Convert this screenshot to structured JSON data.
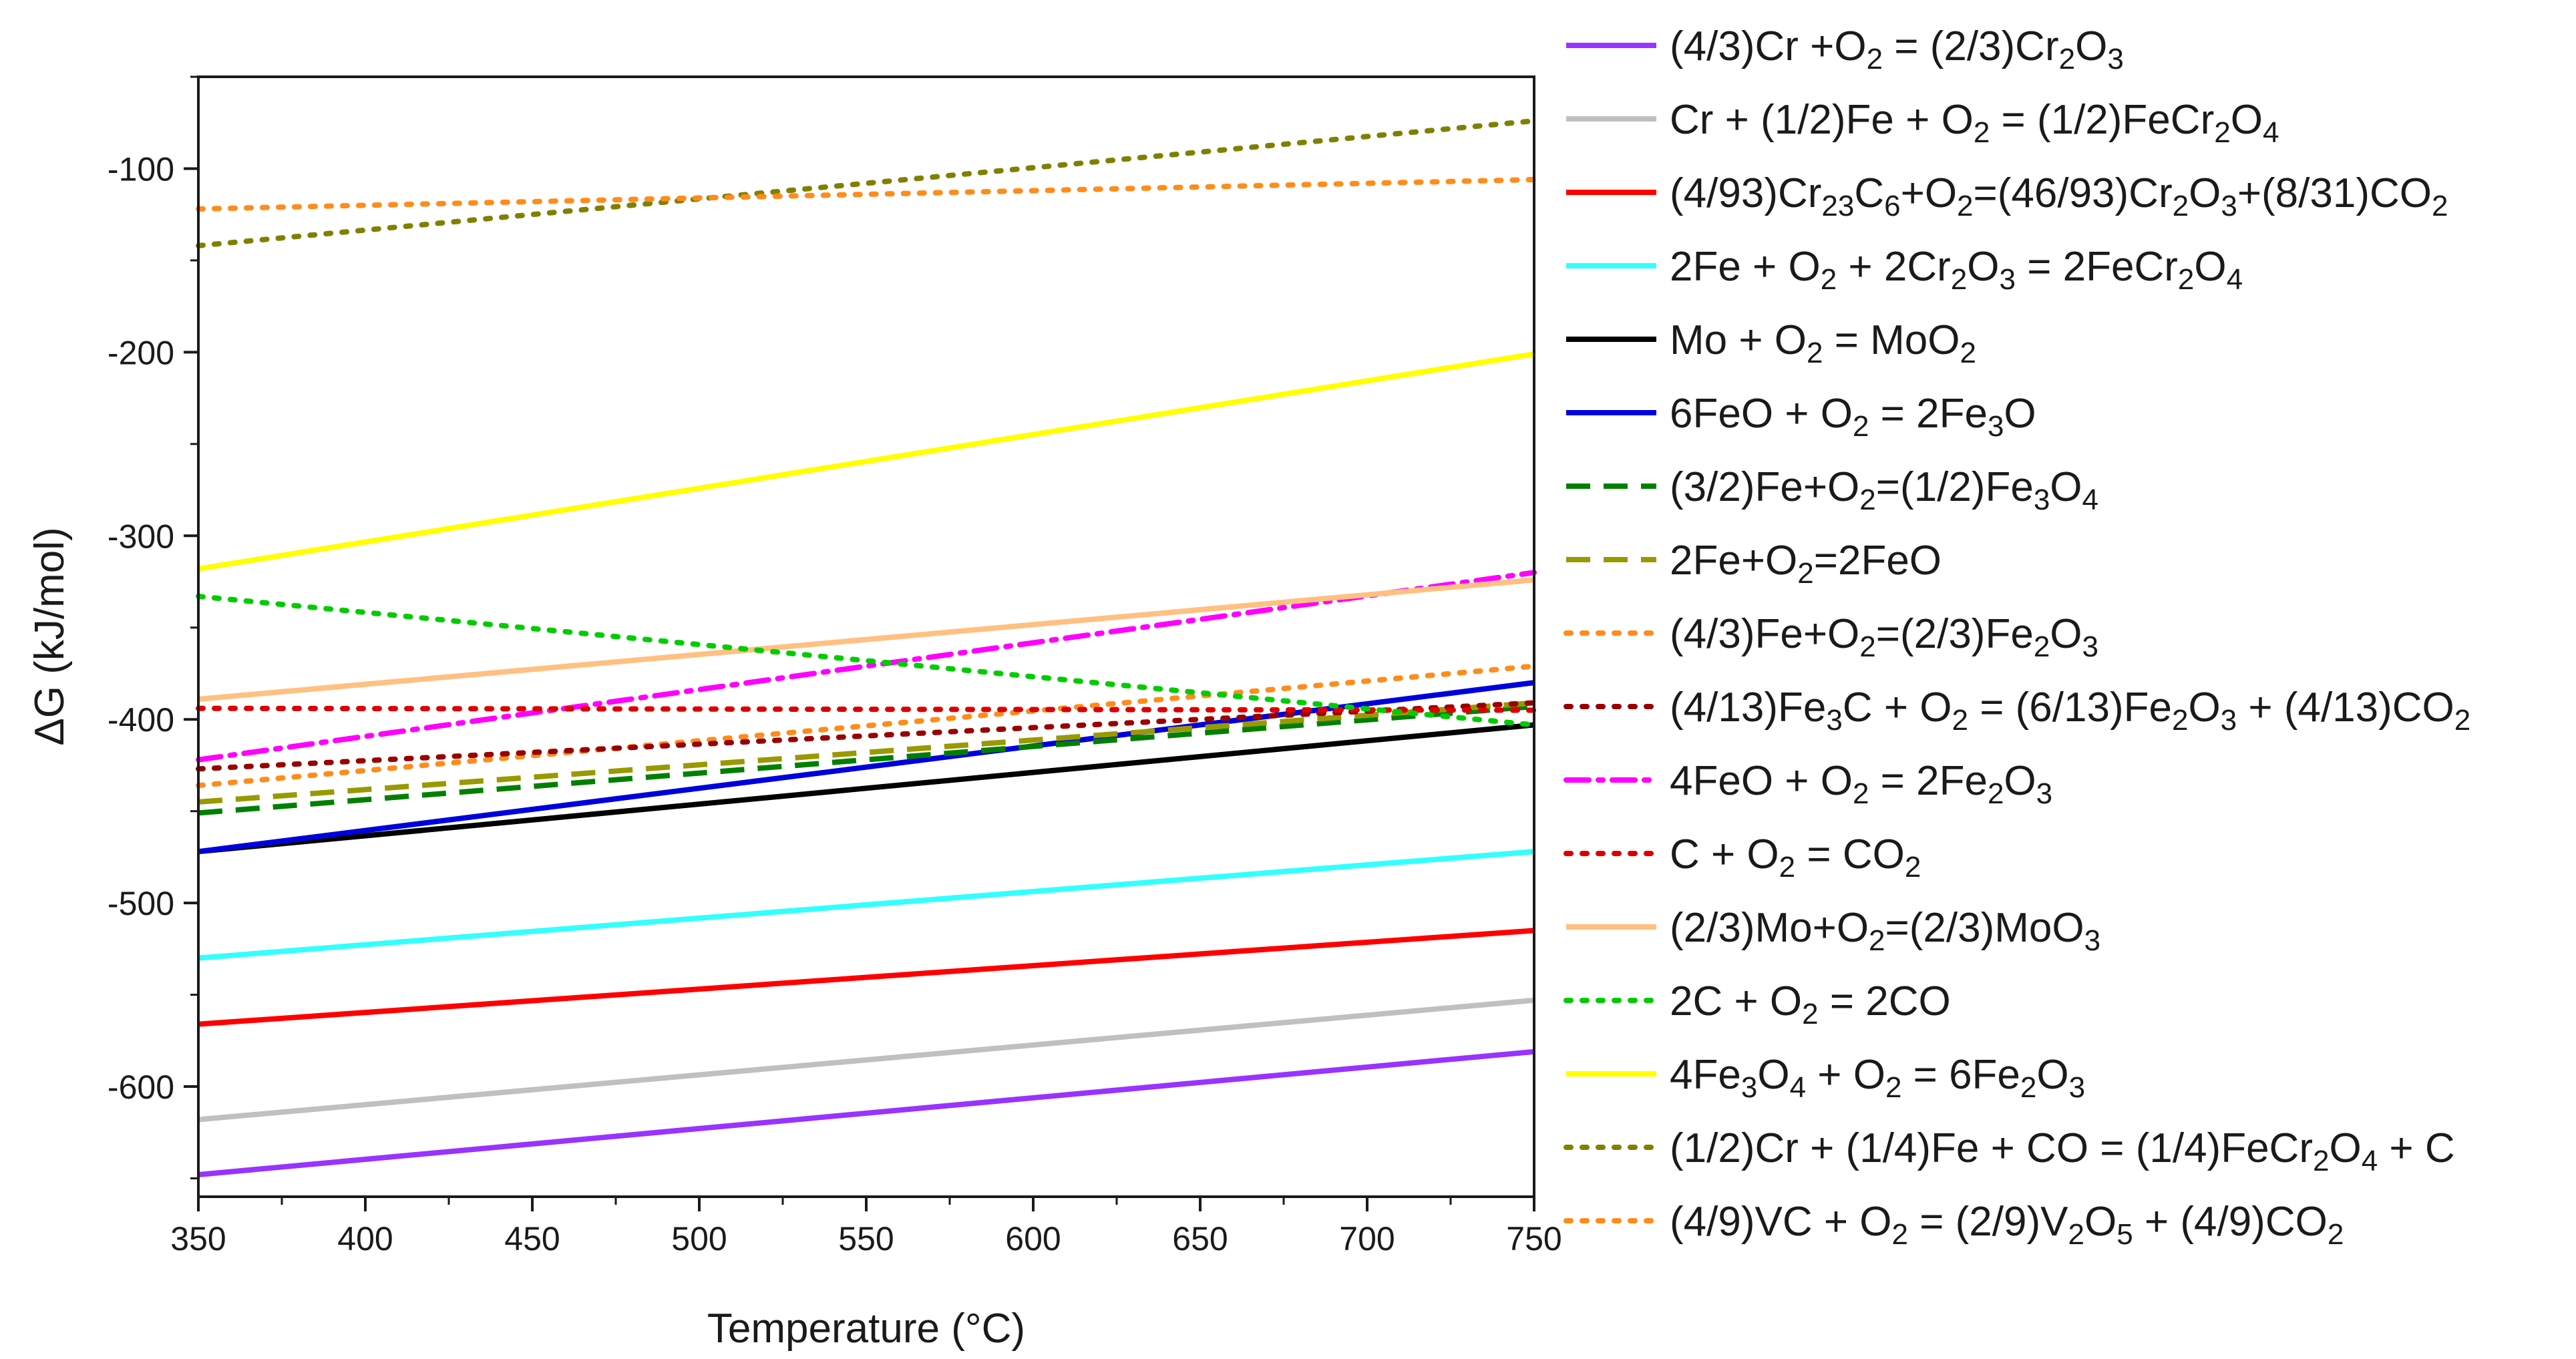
{
  "chart_data": {
    "type": "line",
    "title": "",
    "xlabel": "Temperature (°C)",
    "ylabel": "ΔG (kJ/mol)",
    "xlim": [
      350,
      750
    ],
    "ylim": [
      -660,
      -50
    ],
    "x_ticks": [
      350,
      400,
      450,
      500,
      550,
      600,
      650,
      700,
      750
    ],
    "y_ticks": [
      -100,
      -200,
      -300,
      -400,
      -500,
      -600
    ],
    "grid": false,
    "legend_position": "right",
    "series": [
      {
        "name": "(4/3)Cr +O2 = (2/3)Cr2O3",
        "label": [
          [
            "(4/3)Cr +O",
            ""
          ],
          [
            "2",
            "sub"
          ],
          [
            " = (2/3)Cr",
            ""
          ],
          [
            "2",
            "sub"
          ],
          [
            "O",
            ""
          ],
          [
            "3",
            "sub"
          ]
        ],
        "color": "#9933ff",
        "dash": "solid",
        "x": [
          350,
          750
        ],
        "y": [
          -648,
          -581
        ]
      },
      {
        "name": "Cr + (1/2)Fe + O2 = (1/2)FeCr2O4",
        "label": [
          [
            "Cr + (1/2)Fe + O",
            ""
          ],
          [
            "2",
            "sub"
          ],
          [
            " = (1/2)FeCr",
            ""
          ],
          [
            "2",
            "sub"
          ],
          [
            "O",
            ""
          ],
          [
            "4",
            "sub"
          ]
        ],
        "color": "#c0c0c0",
        "dash": "solid",
        "x": [
          350,
          750
        ],
        "y": [
          -618,
          -553
        ]
      },
      {
        "name": "(4/93)Cr23C6+O2=(46/93)Cr2O3+(8/31)CO2",
        "label": [
          [
            "(4/93)Cr",
            ""
          ],
          [
            "23",
            "sub"
          ],
          [
            "C",
            ""
          ],
          [
            "6",
            "sub"
          ],
          [
            "+O",
            ""
          ],
          [
            "2",
            "sub"
          ],
          [
            "=(46/93)Cr",
            ""
          ],
          [
            "2",
            "sub"
          ],
          [
            "O",
            ""
          ],
          [
            "3",
            "sub"
          ],
          [
            "+(8/31)CO",
            ""
          ],
          [
            "2",
            "sub"
          ]
        ],
        "color": "#ff0000",
        "dash": "solid",
        "x": [
          350,
          750
        ],
        "y": [
          -566,
          -515
        ]
      },
      {
        "name": "2Fe + O2 + 2Cr2O3 = 2FeCr2O4",
        "label": [
          [
            "2Fe + O",
            ""
          ],
          [
            "2",
            "sub"
          ],
          [
            " + 2Cr",
            ""
          ],
          [
            "2",
            "sub"
          ],
          [
            "O",
            ""
          ],
          [
            "3",
            "sub"
          ],
          [
            " = 2FeCr",
            ""
          ],
          [
            "2",
            "sub"
          ],
          [
            "O",
            ""
          ],
          [
            "4",
            "sub"
          ]
        ],
        "color": "#33ffff",
        "dash": "solid",
        "x": [
          350,
          750
        ],
        "y": [
          -530,
          -472
        ]
      },
      {
        "name": "Mo + O2 = MoO2",
        "label": [
          [
            "Mo + O",
            ""
          ],
          [
            "2",
            "sub"
          ],
          [
            " = MoO",
            ""
          ],
          [
            "2",
            "sub"
          ]
        ],
        "color": "#000000",
        "dash": "solid",
        "x": [
          350,
          750
        ],
        "y": [
          -472,
          -403
        ]
      },
      {
        "name": "6FeO + O2 = 2Fe3O",
        "label": [
          [
            "6FeO + O",
            ""
          ],
          [
            "2",
            "sub"
          ],
          [
            " = 2Fe",
            ""
          ],
          [
            "3",
            "sub"
          ],
          [
            "O",
            ""
          ]
        ],
        "color": "#0000dd",
        "dash": "solid",
        "x": [
          350,
          750
        ],
        "y": [
          -472,
          -380
        ]
      },
      {
        "name": "(3/2)Fe+O2=(1/2)Fe3O4",
        "label": [
          [
            "(3/2)Fe+O",
            ""
          ],
          [
            "2",
            "sub"
          ],
          [
            "=(1/2)Fe",
            ""
          ],
          [
            "3",
            "sub"
          ],
          [
            "O",
            ""
          ],
          [
            "4",
            "sub"
          ]
        ],
        "color": "#008000",
        "dash": "dash",
        "x": [
          350,
          750
        ],
        "y": [
          -451,
          -393
        ]
      },
      {
        "name": "2Fe+O2=2FeO",
        "label": [
          [
            "2Fe+O",
            ""
          ],
          [
            "2",
            "sub"
          ],
          [
            "=2FeO",
            ""
          ]
        ],
        "color": "#999900",
        "dash": "dash",
        "x": [
          350,
          750
        ],
        "y": [
          -445,
          -391
        ]
      },
      {
        "name": "(4/3)Fe+O2=(2/3)Fe2O3",
        "label": [
          [
            "(4/3)Fe+O",
            ""
          ],
          [
            "2",
            "sub"
          ],
          [
            "=(2/3)Fe",
            ""
          ],
          [
            "2",
            "sub"
          ],
          [
            "O",
            ""
          ],
          [
            "3",
            "sub"
          ]
        ],
        "color": "#ff8c1a",
        "dash": "dot",
        "x": [
          350,
          750
        ],
        "y": [
          -436,
          -371
        ]
      },
      {
        "name": "(4/13)Fe3C + O2 = (6/13)Fe2O3 + (4/13)CO2",
        "label": [
          [
            "(4/13)Fe",
            ""
          ],
          [
            "3",
            "sub"
          ],
          [
            "C + O",
            ""
          ],
          [
            "2",
            "sub"
          ],
          [
            " = (6/13)Fe",
            ""
          ],
          [
            "2",
            "sub"
          ],
          [
            "O",
            ""
          ],
          [
            "3",
            "sub"
          ],
          [
            " + (4/13)CO",
            ""
          ],
          [
            "2",
            "sub"
          ]
        ],
        "color": "#990000",
        "dash": "dot",
        "x": [
          350,
          750
        ],
        "y": [
          -427,
          -391
        ]
      },
      {
        "name": "4FeO + O2 = 2Fe2O3",
        "label": [
          [
            "4FeO + O",
            ""
          ],
          [
            "2",
            "sub"
          ],
          [
            " = 2Fe",
            ""
          ],
          [
            "2",
            "sub"
          ],
          [
            "O",
            ""
          ],
          [
            "3",
            "sub"
          ]
        ],
        "color": "#ff00ff",
        "dash": "dashdot",
        "x": [
          350,
          750
        ],
        "y": [
          -422,
          -320
        ]
      },
      {
        "name": "C + O2 = CO2",
        "label": [
          [
            "C + O",
            ""
          ],
          [
            "2",
            "sub"
          ],
          [
            " = CO",
            ""
          ],
          [
            "2",
            "sub"
          ]
        ],
        "color": "#dd0000",
        "dash": "dot",
        "x": [
          350,
          750
        ],
        "y": [
          -394,
          -395
        ]
      },
      {
        "name": "(2/3)Mo+O2=(2/3)MoO3",
        "label": [
          [
            "(2/3)Mo+O",
            ""
          ],
          [
            "2",
            "sub"
          ],
          [
            "=(2/3)MoO",
            ""
          ],
          [
            "3",
            "sub"
          ]
        ],
        "color": "#ffc080",
        "dash": "solid",
        "x": [
          350,
          750
        ],
        "y": [
          -389,
          -324
        ]
      },
      {
        "name": "2C + O2 = 2CO",
        "label": [
          [
            "2C + O",
            ""
          ],
          [
            "2",
            "sub"
          ],
          [
            " = 2CO",
            ""
          ]
        ],
        "color": "#00cc00",
        "dash": "dot",
        "x": [
          350,
          750
        ],
        "y": [
          -333,
          -403
        ]
      },
      {
        "name": "4Fe3O4 + O2 = 6Fe2O3",
        "label": [
          [
            "4Fe",
            ""
          ],
          [
            "3",
            "sub"
          ],
          [
            "O",
            ""
          ],
          [
            "4",
            "sub"
          ],
          [
            " + O",
            ""
          ],
          [
            "2",
            "sub"
          ],
          [
            " = 6Fe",
            ""
          ],
          [
            "2",
            "sub"
          ],
          [
            "O",
            ""
          ],
          [
            "3",
            "sub"
          ]
        ],
        "color": "#ffff00",
        "dash": "solid",
        "x": [
          350,
          750
        ],
        "y": [
          -318,
          -201
        ]
      },
      {
        "name": "(1/2)Cr + (1/4)Fe + CO = (1/4)FeCr2O4 + C",
        "label": [
          [
            "(1/2)Cr + (1/4)Fe + CO = (1/4)FeCr",
            ""
          ],
          [
            "2",
            "sub"
          ],
          [
            "O",
            ""
          ],
          [
            "4",
            "sub"
          ],
          [
            " + C",
            ""
          ]
        ],
        "color": "#808000",
        "dash": "dot",
        "x": [
          350,
          750
        ],
        "y": [
          -142,
          -74
        ]
      },
      {
        "name": "(4/9)VC + O2 = (2/9)V2O5 + (4/9)CO2",
        "label": [
          [
            "(4/9)VC + O",
            ""
          ],
          [
            "2",
            "sub"
          ],
          [
            " = (2/9)V",
            ""
          ],
          [
            "2",
            "sub"
          ],
          [
            "O",
            ""
          ],
          [
            "5",
            "sub"
          ],
          [
            " + (4/9)CO",
            ""
          ],
          [
            "2",
            "sub"
          ]
        ],
        "color": "#ff8c1a",
        "dash": "dot",
        "x": [
          350,
          750
        ],
        "y": [
          -122,
          -106
        ]
      }
    ]
  }
}
